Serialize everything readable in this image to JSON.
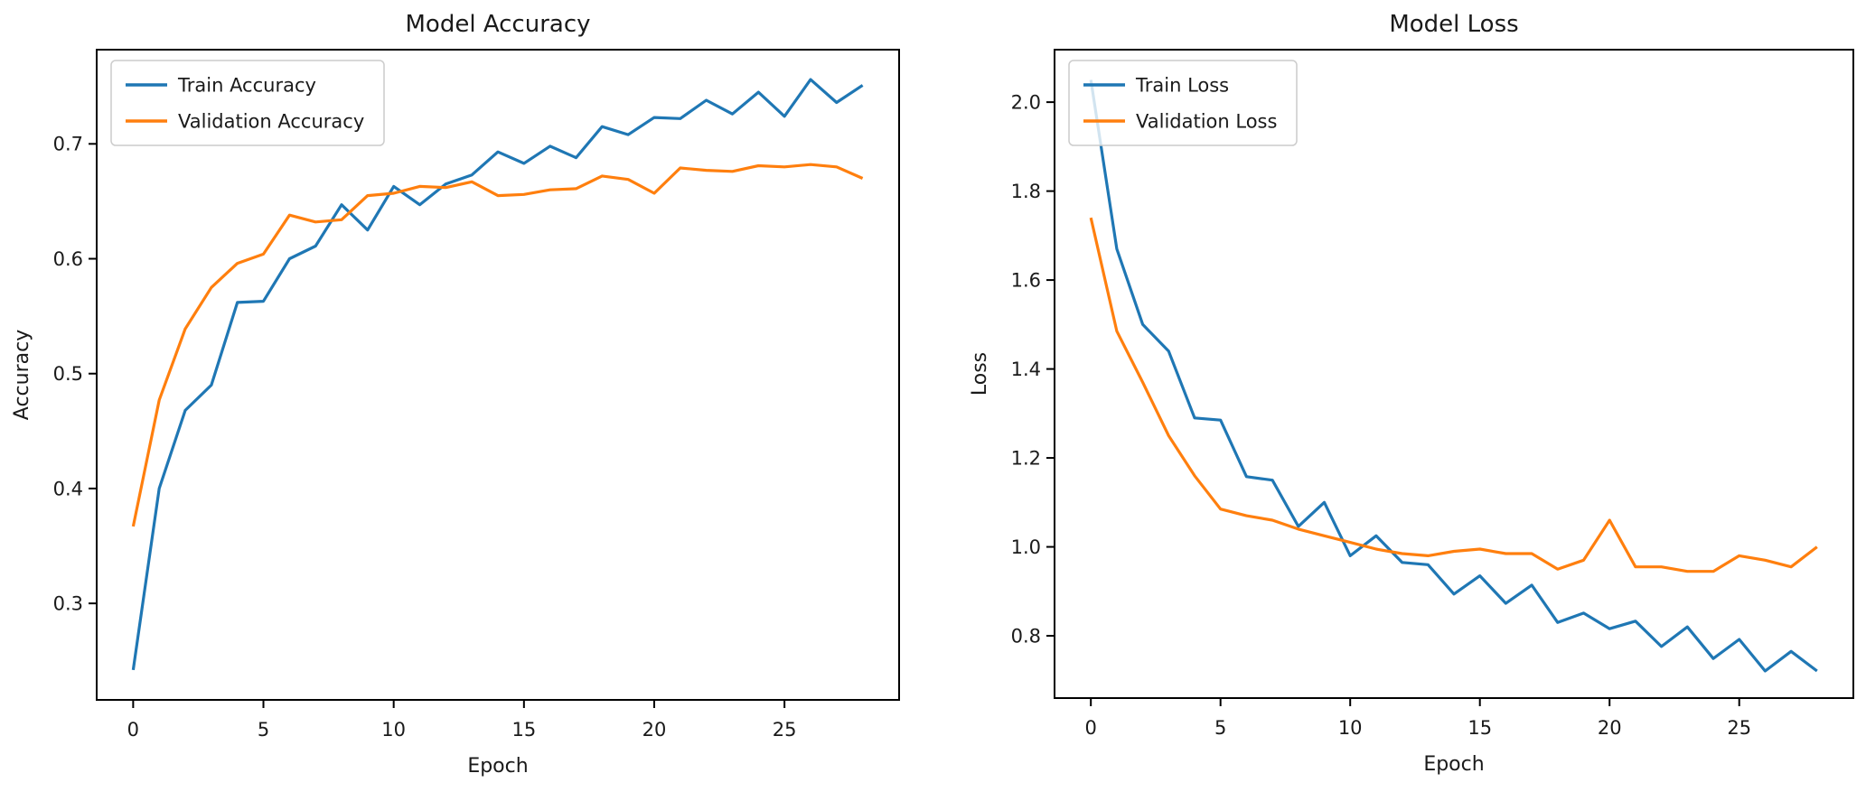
{
  "figure": {
    "background": "#ffffff",
    "text_color": "#1a1a1a",
    "spine_color": "#000000",
    "train_color": "#1f77b4",
    "validation_color": "#ff7f0e",
    "legend_border_color": "#cccccc"
  },
  "chart_data": [
    {
      "type": "line",
      "title": "Model Accuracy",
      "xlabel": "Epoch",
      "ylabel": "Accuracy",
      "x": [
        0,
        1,
        2,
        3,
        4,
        5,
        6,
        7,
        8,
        9,
        10,
        11,
        12,
        13,
        14,
        15,
        16,
        17,
        18,
        19,
        20,
        21,
        22,
        23,
        24,
        25,
        26,
        27,
        28
      ],
      "series": [
        {
          "name": "Train Accuracy",
          "color": "#1f77b4",
          "values": [
            0.242,
            0.4,
            0.468,
            0.49,
            0.562,
            0.563,
            0.6,
            0.611,
            0.647,
            0.625,
            0.663,
            0.647,
            0.665,
            0.673,
            0.693,
            0.683,
            0.698,
            0.688,
            0.715,
            0.708,
            0.723,
            0.722,
            0.738,
            0.726,
            0.745,
            0.724,
            0.756,
            0.736,
            0.751
          ]
        },
        {
          "name": "Validation Accuracy",
          "color": "#ff7f0e",
          "values": [
            0.367,
            0.477,
            0.539,
            0.575,
            0.596,
            0.604,
            0.638,
            0.632,
            0.634,
            0.655,
            0.657,
            0.663,
            0.662,
            0.667,
            0.655,
            0.656,
            0.66,
            0.661,
            0.672,
            0.669,
            0.657,
            0.679,
            0.677,
            0.676,
            0.681,
            0.68,
            0.682,
            0.68,
            0.67
          ]
        }
      ],
      "xlim": [
        -1.4,
        29.4
      ],
      "ylim": [
        0.216,
        0.782
      ],
      "xticks": [
        0,
        5,
        10,
        15,
        20,
        25
      ],
      "xtick_labels": [
        "0",
        "5",
        "10",
        "15",
        "20",
        "25"
      ],
      "yticks": [
        0.3,
        0.4,
        0.5,
        0.6,
        0.7
      ],
      "ytick_labels": [
        "0.3",
        "0.4",
        "0.5",
        "0.6",
        "0.7"
      ],
      "legend": {
        "position": "upper left",
        "entries": [
          "Train Accuracy",
          "Validation Accuracy"
        ]
      },
      "grid": false
    },
    {
      "type": "line",
      "title": "Model Loss",
      "xlabel": "Epoch",
      "ylabel": "Loss",
      "x": [
        0,
        1,
        2,
        3,
        4,
        5,
        6,
        7,
        8,
        9,
        10,
        11,
        12,
        13,
        14,
        15,
        16,
        17,
        18,
        19,
        20,
        21,
        22,
        23,
        24,
        25,
        26,
        27,
        28
      ],
      "series": [
        {
          "name": "Train Loss",
          "color": "#1f77b4",
          "values": [
            2.05,
            1.67,
            1.5,
            1.44,
            1.29,
            1.285,
            1.158,
            1.15,
            1.046,
            1.1,
            0.98,
            1.025,
            0.965,
            0.96,
            0.894,
            0.935,
            0.873,
            0.914,
            0.83,
            0.851,
            0.816,
            0.833,
            0.776,
            0.82,
            0.749,
            0.792,
            0.721,
            0.765,
            0.721
          ]
        },
        {
          "name": "Validation Loss",
          "color": "#ff7f0e",
          "values": [
            1.74,
            1.485,
            1.37,
            1.25,
            1.16,
            1.085,
            1.07,
            1.06,
            1.04,
            1.025,
            1.01,
            0.995,
            0.985,
            0.98,
            0.99,
            0.995,
            0.985,
            0.985,
            0.95,
            0.97,
            1.06,
            0.955,
            0.955,
            0.945,
            0.945,
            0.98,
            0.97,
            0.955,
            1.0
          ]
        }
      ],
      "xlim": [
        -1.4,
        29.4
      ],
      "ylim": [
        0.66,
        2.118
      ],
      "xticks": [
        0,
        5,
        10,
        15,
        20,
        25
      ],
      "xtick_labels": [
        "0",
        "5",
        "10",
        "15",
        "20",
        "25"
      ],
      "yticks": [
        0.8,
        1.0,
        1.2,
        1.4,
        1.6,
        1.8,
        2.0
      ],
      "ytick_labels": [
        "0.8",
        "1.0",
        "1.2",
        "1.4",
        "1.6",
        "1.8",
        "2.0"
      ],
      "legend": {
        "position": "upper left",
        "entries": [
          "Train Loss",
          "Validation Loss"
        ]
      },
      "grid": false
    }
  ]
}
